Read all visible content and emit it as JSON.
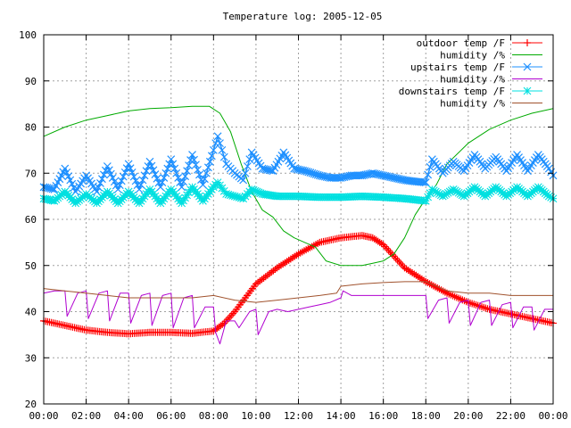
{
  "chart_data": {
    "type": "line",
    "title": "Temperature log: 2005-12-05",
    "xlabel": "",
    "ylabel": "",
    "ylim": [
      20,
      100
    ],
    "xlim": [
      0,
      24
    ],
    "grid": true,
    "legend_position": "top-right",
    "x_ticks": [
      "00:00",
      "02:00",
      "04:00",
      "06:00",
      "08:00",
      "10:00",
      "12:00",
      "14:00",
      "16:00",
      "18:00",
      "20:00",
      "22:00",
      "00:00"
    ],
    "y_ticks": [
      20,
      30,
      40,
      50,
      60,
      70,
      80,
      90,
      100
    ],
    "series": [
      {
        "name": "outdoor temp /F",
        "color": "#ff0000",
        "marker": "plus",
        "x": [
          0,
          1,
          2,
          3,
          4,
          5,
          6,
          7,
          8,
          8.5,
          9,
          9.5,
          10,
          11,
          12,
          13,
          14,
          15,
          15.5,
          16,
          16.5,
          17,
          18,
          19,
          20,
          21,
          22,
          23,
          24
        ],
        "y": [
          38,
          37,
          36,
          35.5,
          35.2,
          35.5,
          35.5,
          35.3,
          35.8,
          37.5,
          40,
          43,
          46,
          49.5,
          52.5,
          55,
          56,
          56.5,
          56,
          54.5,
          52,
          49.5,
          46.5,
          44,
          42,
          40.5,
          39.5,
          38.5,
          37.5
        ]
      },
      {
        "name": "humidity /%",
        "color": "#00aa00",
        "marker": "none",
        "x": [
          0,
          1,
          2,
          3,
          4,
          5,
          6,
          7,
          7.8,
          8.3,
          8.8,
          9.3,
          9.8,
          10.3,
          10.8,
          11.3,
          11.8,
          12.3,
          12.8,
          13.3,
          14,
          14.5,
          15,
          15.5,
          16,
          16.5,
          17,
          17.5,
          18,
          18.5,
          19,
          20,
          21,
          22,
          23,
          24
        ],
        "y": [
          78,
          80,
          81.5,
          82.5,
          83.5,
          84,
          84.2,
          84.5,
          84.5,
          83,
          79,
          72,
          66,
          62,
          60.5,
          57.5,
          56,
          55,
          54,
          51,
          50,
          50,
          50,
          50.5,
          51,
          52.5,
          56,
          61,
          64.5,
          67.5,
          72,
          76.5,
          79.5,
          81.5,
          83,
          84
        ]
      },
      {
        "name": "upstairs temp /F",
        "color": "#1e90ff",
        "marker": "cross",
        "x": [
          0,
          0.5,
          1,
          1.5,
          2,
          2.5,
          3,
          3.5,
          4,
          4.5,
          5,
          5.5,
          6,
          6.5,
          7,
          7.5,
          8,
          8.2,
          8.6,
          9,
          9.4,
          9.8,
          10.3,
          10.8,
          11.3,
          11.8,
          12.3,
          13,
          13.5,
          14,
          14.5,
          15,
          15.5,
          16,
          16.5,
          17,
          17.5,
          18,
          18.3,
          18.8,
          19.3,
          19.8,
          20.3,
          20.8,
          21.3,
          21.8,
          22.3,
          22.8,
          23.3,
          23.8,
          24
        ],
        "y": [
          67,
          66.5,
          71,
          66,
          69.5,
          66,
          71.5,
          66.5,
          72,
          66.5,
          72.5,
          67,
          73,
          67,
          74,
          67.5,
          75,
          78,
          72,
          70,
          68.5,
          74.5,
          71,
          70.5,
          74.5,
          71,
          70.5,
          69.5,
          69,
          69,
          69.5,
          69.5,
          70,
          69.5,
          69,
          68.5,
          68.2,
          68,
          73,
          70,
          72.5,
          70.5,
          74,
          71,
          73.5,
          70.5,
          74,
          70.5,
          74,
          71,
          69.5
        ]
      },
      {
        "name": "humidity /%",
        "color": "#b000d0",
        "marker": "none",
        "x": [
          0,
          0.5,
          1,
          1.1,
          1.6,
          2,
          2.1,
          2.6,
          3,
          3.1,
          3.6,
          4,
          4.1,
          4.6,
          5,
          5.1,
          5.6,
          6,
          6.1,
          6.6,
          7,
          7.1,
          7.6,
          8,
          8.1,
          8.3,
          8.6,
          9,
          9.2,
          9.7,
          10,
          10.1,
          10.6,
          11,
          11.5,
          12,
          12.5,
          13,
          13.5,
          14,
          14.1,
          14.5,
          15,
          15.5,
          16,
          16.5,
          17,
          17.5,
          18,
          18.1,
          18.6,
          19,
          19.1,
          19.6,
          20,
          20.1,
          20.6,
          21,
          21.1,
          21.6,
          22,
          22.1,
          22.6,
          23,
          23.1,
          23.6,
          24
        ],
        "y": [
          44,
          44.5,
          44.5,
          39,
          44,
          44.5,
          38.5,
          44,
          44.5,
          38,
          44,
          44,
          37.5,
          43.5,
          44,
          37,
          43.5,
          44,
          36.5,
          43,
          43.5,
          36.5,
          41,
          41,
          35.5,
          33,
          38,
          38,
          36.5,
          40,
          40.5,
          35,
          40,
          40.5,
          40,
          40.5,
          41,
          41.5,
          42,
          43,
          44.5,
          43.5,
          43.5,
          43.5,
          43.5,
          43.5,
          43.5,
          43.5,
          43.5,
          38.5,
          42.5,
          43,
          37.5,
          42,
          42.5,
          37,
          42,
          42.5,
          37,
          41.5,
          42,
          36.5,
          41,
          41,
          36,
          40.5,
          40.5
        ]
      },
      {
        "name": "downstairs temp /F",
        "color": "#00e0e0",
        "marker": "star",
        "x": [
          0,
          0.5,
          1,
          1.5,
          2,
          2.5,
          3,
          3.5,
          4,
          4.5,
          5,
          5.5,
          6,
          6.5,
          7,
          7.5,
          8,
          8.2,
          8.6,
          9,
          9.4,
          9.8,
          10.3,
          11,
          12,
          13,
          14,
          15,
          16,
          17,
          18,
          18.3,
          18.8,
          19.3,
          19.8,
          20.3,
          20.8,
          21.3,
          21.8,
          22.3,
          22.8,
          23.3,
          23.8,
          24
        ],
        "y": [
          64.5,
          64,
          66,
          63.5,
          65.5,
          63.5,
          66,
          63.5,
          66,
          63.5,
          66.5,
          63.5,
          66.5,
          63.5,
          67,
          64,
          67,
          68,
          65.5,
          65,
          64.5,
          66.5,
          65.5,
          65,
          65,
          64.8,
          64.8,
          65,
          64.8,
          64.5,
          64,
          66.5,
          65,
          66.5,
          65,
          67,
          65,
          67,
          65,
          67,
          65,
          67,
          65,
          64.5
        ]
      },
      {
        "name": "humidity /%",
        "color": "#a0522d",
        "marker": "none",
        "x": [
          0,
          1,
          2,
          3,
          4,
          5,
          6,
          7,
          8,
          9,
          10,
          11,
          12,
          13,
          13.8,
          14,
          15,
          16,
          17,
          18,
          19,
          20,
          21,
          22,
          23,
          24
        ],
        "y": [
          45,
          44.5,
          44,
          43.5,
          43,
          43,
          43,
          43,
          43.5,
          42.5,
          42,
          42.5,
          43,
          43.5,
          44,
          45.5,
          46,
          46.3,
          46.5,
          46.5,
          44.5,
          44,
          44,
          43.5,
          43.5,
          43.5
        ]
      }
    ]
  }
}
